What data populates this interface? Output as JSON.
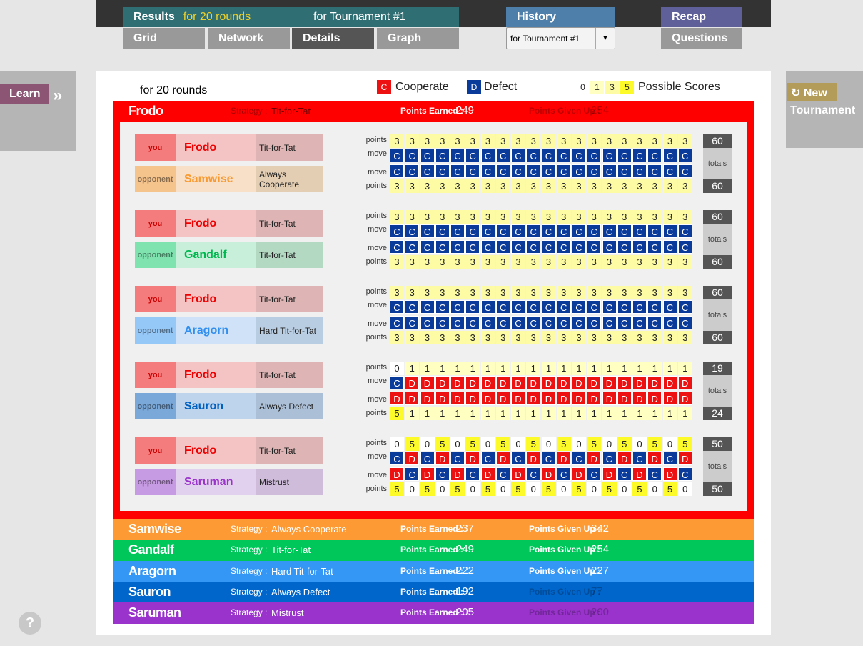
{
  "nav": {
    "results_label": "Results",
    "results_sub": "for 20 rounds",
    "results_for": "for Tournament #1",
    "grid": "Grid",
    "network": "Network",
    "details": "Details",
    "graph": "Graph",
    "history": "History",
    "history_select": "for Tournament #1",
    "recap": "Recap",
    "questions": "Questions"
  },
  "side": {
    "learn": "Learn",
    "learn_chevron": "»",
    "new": "New",
    "tournament": "Tournament",
    "help": "?"
  },
  "legend": {
    "rounds": "for 20 rounds",
    "c_glyph": "C",
    "cooperate": "Cooperate",
    "d_glyph": "D",
    "defect": "Defect",
    "scores": [
      "0",
      "1",
      "3",
      "5"
    ],
    "possible_scores": "Possible Scores"
  },
  "labels": {
    "strategy": "Strategy :",
    "points_earned": "Points Earned :",
    "points_given_up": "Points Given Up :",
    "points": "points",
    "move": "move",
    "totals": "totals",
    "you": "you",
    "opponent": "opponent"
  },
  "colors": {
    "cooperate": "#0a3a9a",
    "defect": "#ee1111",
    "score0": "#ffffff",
    "score1": "#ffffc2",
    "score3": "#fdfca5",
    "score5": "#fdfa2a"
  },
  "players": [
    {
      "name": "Frodo",
      "strategy": "Tit-for-Tat",
      "earned": "249",
      "given_up": "254",
      "color": "#ff0000"
    },
    {
      "name": "Samwise",
      "strategy": "Always Cooperate",
      "earned": "237",
      "given_up": "342",
      "color": "#fe9a33"
    },
    {
      "name": "Gandalf",
      "strategy": "Tit-for-Tat",
      "earned": "249",
      "given_up": "254",
      "color": "#00c75a"
    },
    {
      "name": "Aragorn",
      "strategy": "Hard Tit-for-Tat",
      "earned": "222",
      "given_up": "227",
      "color": "#3497f5"
    },
    {
      "name": "Sauron",
      "strategy": "Always Defect",
      "earned": "192",
      "given_up": "77",
      "color": "#0066cc"
    },
    {
      "name": "Saruman",
      "strategy": "Mistrust",
      "earned": "205",
      "given_up": "200",
      "color": "#9933cc"
    }
  ],
  "matches": [
    {
      "you": "Frodo",
      "you_strategy": "Tit-for-Tat",
      "opp": "Samwise",
      "opp_strategy": "Always Cooperate",
      "you_points": "33333333333333333333",
      "you_moves": "CCCCCCCCCCCCCCCCCCCC",
      "opp_moves": "CCCCCCCCCCCCCCCCCCCC",
      "opp_points": "33333333333333333333",
      "you_total": "60",
      "opp_total": "60",
      "opp_colors": {
        "tag": "#f5c38c",
        "name_bg": "#f7dfc8",
        "strat_bg": "#e3cdb3",
        "name": "#f89a30"
      }
    },
    {
      "you": "Frodo",
      "you_strategy": "Tit-for-Tat",
      "opp": "Gandalf",
      "opp_strategy": "Tit-for-Tat",
      "you_points": "33333333333333333333",
      "you_moves": "CCCCCCCCCCCCCCCCCCCC",
      "opp_moves": "CCCCCCCCCCCCCCCCCCCC",
      "opp_points": "33333333333333333333",
      "you_total": "60",
      "opp_total": "60",
      "opp_colors": {
        "tag": "#7fe3b0",
        "name_bg": "#c7efd9",
        "strat_bg": "#b3d9c3",
        "name": "#00b850"
      }
    },
    {
      "you": "Frodo",
      "you_strategy": "Tit-for-Tat",
      "opp": "Aragorn",
      "opp_strategy": "Hard Tit-for-Tat",
      "you_points": "33333333333333333333",
      "you_moves": "CCCCCCCCCCCCCCCCCCCC",
      "opp_moves": "CCCCCCCCCCCCCCCCCCCC",
      "opp_points": "33333333333333333333",
      "you_total": "60",
      "opp_total": "60",
      "opp_colors": {
        "tag": "#96c8f7",
        "name_bg": "#cfe2f7",
        "strat_bg": "#b9cde2",
        "name": "#2f8ef0"
      }
    },
    {
      "you": "Frodo",
      "you_strategy": "Tit-for-Tat",
      "opp": "Sauron",
      "opp_strategy": "Always Defect",
      "you_points": "01111111111111111111",
      "you_moves": "CDDDDDDDDDDDDDDDDDDD",
      "opp_moves": "DDDDDDDDDDDDDDDDDDDD",
      "opp_points": "51111111111111111111",
      "you_total": "19",
      "opp_total": "24",
      "opp_colors": {
        "tag": "#7aa8d9",
        "name_bg": "#bdd4ec",
        "strat_bg": "#abbfd6",
        "name": "#0060c0"
      }
    },
    {
      "you": "Frodo",
      "you_strategy": "Tit-for-Tat",
      "opp": "Saruman",
      "opp_strategy": "Mistrust",
      "you_points": "05050505050505050505",
      "you_moves": "CDCDCDCDCDCDCDCDCDCD",
      "opp_moves": "DCDCDCDCDCDCDCDCDCDC",
      "opp_points": "50505050505050505050",
      "you_total": "50",
      "opp_total": "50",
      "opp_colors": {
        "tag": "#c79be3",
        "name_bg": "#e2d0ef",
        "strat_bg": "#cfbcda",
        "name": "#9a33c9"
      }
    }
  ]
}
